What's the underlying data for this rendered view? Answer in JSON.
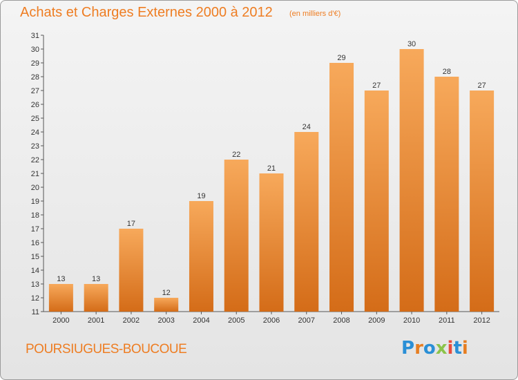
{
  "header": {
    "title": "Achats et Charges Externes 2000 à 2012",
    "unit": "(en milliers d'€)"
  },
  "footer": {
    "commune": "POURSIUGUES-BOUCOUE",
    "logo_letters": [
      "P",
      "r",
      "o",
      "x",
      "i",
      "t",
      "i"
    ],
    "logo_colors": [
      "#2a8fd6",
      "#e67e22",
      "#2a8fd6",
      "#8bc34a",
      "#e84c3d",
      "#2a8fd6",
      "#e67e22"
    ]
  },
  "colors": {
    "bar_top": "#f7a95b",
    "bar_bottom": "#d46c18",
    "text": "#ee7d22"
  },
  "chart_data": {
    "type": "bar",
    "title": "Achats et Charges Externes 2000 à 2012",
    "subtitle": "(en milliers d'€)",
    "categories": [
      "2000",
      "2001",
      "2002",
      "2003",
      "2004",
      "2005",
      "2006",
      "2007",
      "2008",
      "2009",
      "2010",
      "2011",
      "2012"
    ],
    "values": [
      13,
      13,
      17,
      12,
      19,
      22,
      21,
      24,
      29,
      27,
      30,
      28,
      27
    ],
    "ylim": [
      11,
      31
    ],
    "yticks": [
      11,
      12,
      13,
      14,
      15,
      16,
      17,
      18,
      19,
      20,
      21,
      22,
      23,
      24,
      25,
      26,
      27,
      28,
      29,
      30,
      31
    ],
    "grid": false
  }
}
